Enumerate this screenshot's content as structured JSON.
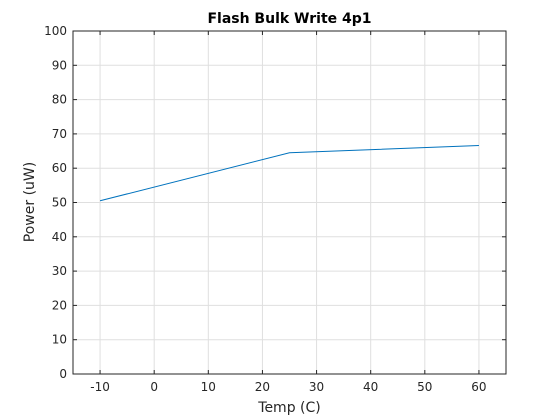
{
  "chart_data": {
    "type": "line",
    "title": "Flash Bulk Write 4p1",
    "xlabel": "Temp (C)",
    "ylabel": "Power (uW)",
    "xlim": [
      -15,
      65
    ],
    "ylim": [
      0,
      100
    ],
    "xticks": [
      -10,
      0,
      10,
      20,
      30,
      40,
      50,
      60
    ],
    "yticks": [
      0,
      10,
      20,
      30,
      40,
      50,
      60,
      70,
      80,
      90,
      100
    ],
    "grid": true,
    "box": true,
    "series": [
      {
        "x": [
          -10,
          25,
          60
        ],
        "y": [
          50.5,
          64.5,
          66.6
        ],
        "color": "#0072BD"
      }
    ]
  }
}
